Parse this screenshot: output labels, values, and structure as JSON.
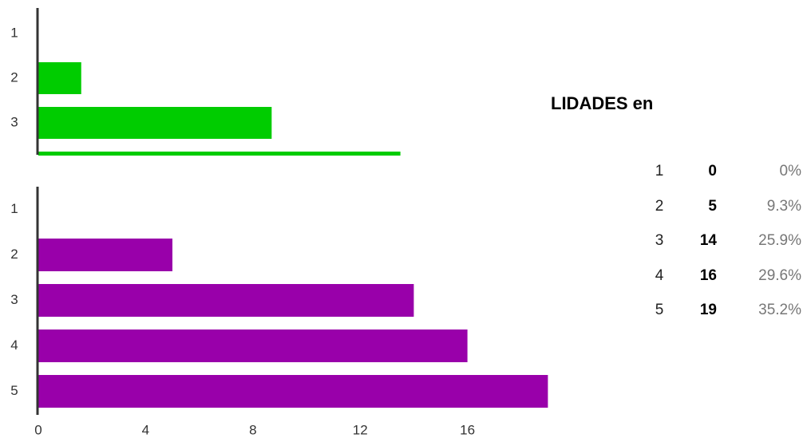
{
  "chart_data": [
    {
      "type": "bar",
      "orientation": "horizontal",
      "categories": [
        "1",
        "2",
        "3",
        null
      ],
      "values": [
        0,
        1.6,
        8.7,
        13.5
      ],
      "color": "#00cc00",
      "xlim": [
        0,
        19
      ]
    },
    {
      "type": "bar",
      "orientation": "horizontal",
      "categories": [
        "1",
        "2",
        "3",
        "4",
        "5"
      ],
      "values": [
        0,
        5,
        14,
        16,
        19
      ],
      "color": "#9900aa",
      "xlim": [
        0,
        19
      ],
      "xticks": [
        0,
        4,
        8,
        12,
        16
      ]
    }
  ],
  "table": {
    "title": "LIDADES en",
    "rows": [
      [
        "1",
        "0",
        "0%"
      ],
      [
        "2",
        "5",
        "9.3%"
      ],
      [
        "3",
        "14",
        "25.9%"
      ],
      [
        "4",
        "16",
        "29.6%"
      ],
      [
        "5",
        "19",
        "35.2%"
      ]
    ]
  }
}
